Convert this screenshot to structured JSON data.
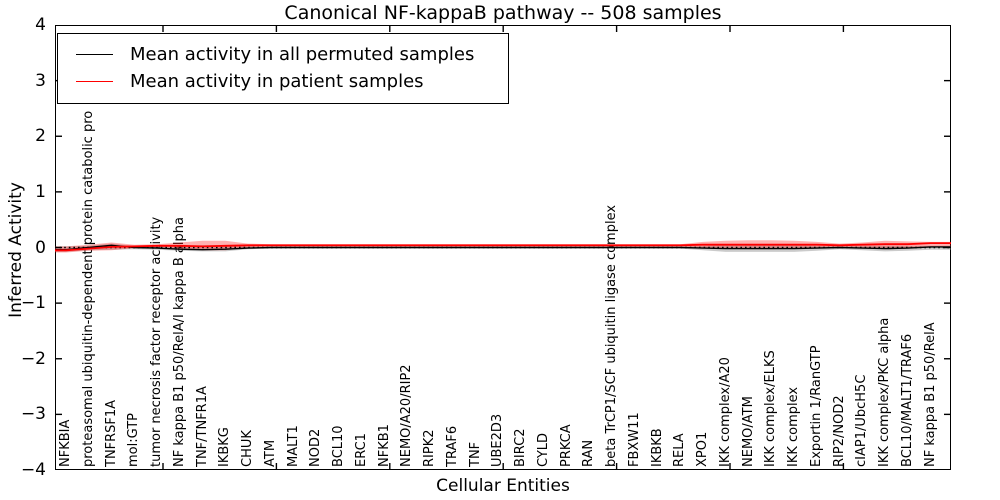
{
  "title": "Canonical NF-kappaB pathway -- 508 samples",
  "legend": {
    "items": [
      {
        "label": "Mean activity in all permuted samples",
        "color": "#000000"
      },
      {
        "label": "Mean activity in patient samples",
        "color": "#ff0000"
      }
    ]
  },
  "axes": {
    "ylabel": "Inferred Activity",
    "xlabel": "Cellular Entities",
    "ytick_labels": [
      "4",
      "3",
      "2",
      "1",
      "0",
      "−1",
      "−2",
      "−3",
      "−4"
    ]
  },
  "colors": {
    "patient_line": "#ff0000",
    "permuted_line": "#000000",
    "patient_band": "#ff0000",
    "permuted_band": "#8c8c8c",
    "zero_line": "#000000"
  },
  "chart_data": {
    "type": "line",
    "title": "Canonical NF-kappaB pathway -- 508 samples",
    "xlabel": "Cellular Entities",
    "ylabel": "Inferred Activity",
    "ylim": [
      -4,
      4
    ],
    "yticks": [
      4,
      3,
      2,
      1,
      0,
      -1,
      -2,
      -3,
      -4
    ],
    "grid": false,
    "zero_line_style": "dotted",
    "legend_position": "upper left",
    "categories": [
      "NFKBIA",
      "proteasomal ubiquitin-dependent protein catabolic pro",
      "TNFRSF1A",
      "mol:GTP",
      "tumor necrosis factor receptor activity",
      "NF kappa B1 p50/RelA/I kappa B alpha",
      "TNF/TNFR1A",
      "IKBKG",
      "CHUK",
      "ATM",
      "MALT1",
      "NOD2",
      "BCL10",
      "ERC1",
      "NFKB1",
      "NEMO/A20/RIP2",
      "RIPK2",
      "TRAF6",
      "TNF",
      "UBE2D3",
      "BIRC2",
      "CYLD",
      "PRKCA",
      "RAN",
      "beta TrCP1/SCF ubiquitin ligase complex",
      "FBXW11",
      "IKBKB",
      "RELA",
      "XPO1",
      "IKK complex/A20",
      "NEMO/ATM",
      "IKK complex/ELKS",
      "IKK complex",
      "Exportin 1/RanGTP",
      "RIP2/NOD2",
      "cIAP1/UbcH5C",
      "IKK complex/PKC alpha",
      "BCL10/MALT1/TRAF6",
      "NF kappa B1 p50/RelA"
    ],
    "series": [
      {
        "name": "Mean activity in all permuted samples",
        "color": "#000000",
        "values": [
          -0.04,
          0.0,
          0.04,
          0.0,
          -0.01,
          -0.03,
          -0.04,
          -0.03,
          -0.01,
          0.0,
          0.0,
          0.0,
          0.0,
          0.0,
          0.0,
          0.0,
          0.0,
          0.0,
          0.0,
          0.0,
          0.0,
          0.0,
          0.0,
          0.0,
          0.0,
          0.0,
          0.0,
          0.0,
          -0.01,
          -0.02,
          -0.02,
          -0.02,
          -0.02,
          -0.01,
          0.0,
          -0.01,
          -0.02,
          -0.01,
          0.01
        ]
      },
      {
        "name": "Mean activity in patient samples",
        "color": "#ff0000",
        "values": [
          -0.05,
          -0.02,
          0.01,
          0.02,
          0.03,
          0.03,
          0.02,
          0.03,
          0.04,
          0.04,
          0.04,
          0.04,
          0.04,
          0.04,
          0.04,
          0.04,
          0.04,
          0.04,
          0.04,
          0.04,
          0.04,
          0.04,
          0.04,
          0.04,
          0.04,
          0.04,
          0.04,
          0.04,
          0.05,
          0.05,
          0.05,
          0.05,
          0.05,
          0.05,
          0.04,
          0.05,
          0.06,
          0.06,
          0.08
        ]
      }
    ],
    "bands": [
      {
        "name": "permuted-samples-band",
        "color": "#8c8c8c",
        "opacity": 0.45,
        "upper": [
          0.02,
          0.03,
          0.07,
          0.03,
          0.02,
          0.03,
          0.04,
          0.04,
          0.02,
          0.02,
          0.02,
          0.02,
          0.02,
          0.02,
          0.02,
          0.02,
          0.02,
          0.02,
          0.02,
          0.02,
          0.02,
          0.02,
          0.02,
          0.02,
          0.02,
          0.02,
          0.02,
          0.02,
          0.03,
          0.04,
          0.04,
          0.04,
          0.04,
          0.03,
          0.02,
          0.03,
          0.03,
          0.03,
          0.03
        ],
        "lower": [
          -0.08,
          -0.05,
          -0.04,
          -0.03,
          -0.04,
          -0.06,
          -0.07,
          -0.07,
          -0.03,
          -0.02,
          -0.02,
          -0.02,
          -0.02,
          -0.02,
          -0.02,
          -0.02,
          -0.02,
          -0.02,
          -0.02,
          -0.02,
          -0.02,
          -0.02,
          -0.02,
          -0.02,
          -0.02,
          -0.02,
          -0.02,
          -0.02,
          -0.05,
          -0.08,
          -0.08,
          -0.08,
          -0.08,
          -0.06,
          -0.03,
          -0.05,
          -0.07,
          -0.06,
          -0.04
        ]
      },
      {
        "name": "patient-samples-band",
        "color": "#ff0000",
        "opacity": 0.3,
        "upper": [
          0.02,
          0.05,
          0.09,
          0.05,
          0.06,
          0.09,
          0.12,
          0.12,
          0.07,
          0.06,
          0.06,
          0.06,
          0.06,
          0.06,
          0.06,
          0.06,
          0.06,
          0.06,
          0.06,
          0.06,
          0.06,
          0.06,
          0.06,
          0.06,
          0.06,
          0.06,
          0.06,
          0.06,
          0.1,
          0.12,
          0.13,
          0.13,
          0.12,
          0.1,
          0.07,
          0.09,
          0.12,
          0.11,
          0.1
        ],
        "lower": [
          -0.09,
          -0.06,
          -0.05,
          -0.01,
          0.01,
          -0.02,
          -0.05,
          -0.05,
          0.0,
          0.02,
          0.02,
          0.02,
          0.02,
          0.02,
          0.02,
          0.02,
          0.02,
          0.02,
          0.02,
          0.02,
          0.02,
          0.02,
          0.02,
          0.02,
          0.02,
          0.02,
          0.02,
          0.02,
          -0.01,
          -0.02,
          -0.03,
          -0.03,
          -0.02,
          -0.01,
          0.01,
          -0.01,
          -0.03,
          -0.02,
          0.0
        ]
      }
    ]
  }
}
